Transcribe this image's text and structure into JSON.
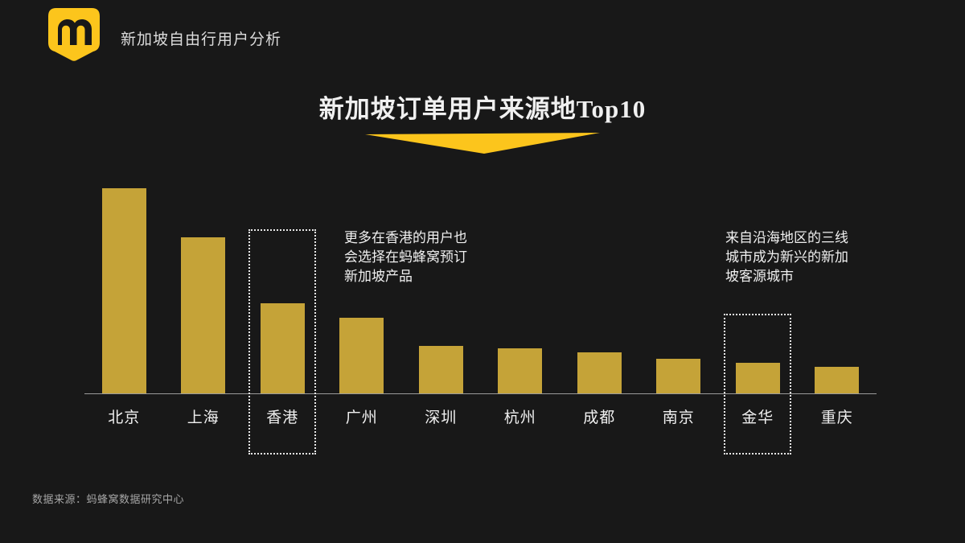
{
  "colors": {
    "background": "#181818",
    "bar": "#c5a338",
    "accent": "#fcc51c",
    "text_primary": "#f0f0f0",
    "text_secondary": "#dcdcdc",
    "text_muted": "#a6a6a6",
    "axis": "#9b9b9b"
  },
  "header": {
    "subtitle": "新加坡自由行用户分析",
    "logo_icon": "mafengwo-honeycomb-m-logo"
  },
  "chart_data": {
    "type": "bar",
    "title": "新加坡订单用户来源地Top10",
    "categories": [
      "北京",
      "上海",
      "香港",
      "广州",
      "深圳",
      "杭州",
      "成都",
      "南京",
      "金华",
      "重庆"
    ],
    "values": [
      100,
      76,
      44,
      37,
      23,
      22,
      20,
      17,
      15,
      13
    ],
    "ylim": [
      0,
      100
    ],
    "xlabel": "",
    "ylabel": "",
    "grid": false,
    "legend": false,
    "bar_color": "#c5a338",
    "highlighted_categories": [
      "香港",
      "金华"
    ],
    "annotations": [
      {
        "target": "香港",
        "text": "更多在香港的用户也会选择在蚂蜂窝预订新加坡产品"
      },
      {
        "target": "金华",
        "text": "来自沿海地区的三线城市成为新兴的新加坡客源城市"
      }
    ]
  },
  "footer": {
    "source": "数据来源：蚂蜂窝数据研究中心"
  }
}
